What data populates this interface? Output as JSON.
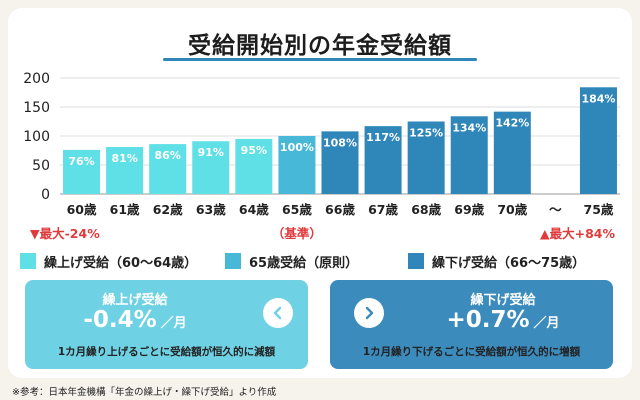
{
  "title": "受給開始別の年金受給額",
  "colors": {
    "light": "#5fdfe6",
    "mid": "#47b8d8",
    "dark": "#2f86b9",
    "red": "#e03a3a",
    "light_box": "#6fd2e4",
    "dark_box": "#3b8bbd"
  },
  "chart_data": {
    "type": "bar",
    "categories": [
      "60歳",
      "61歳",
      "62歳",
      "63歳",
      "64歳",
      "65歳",
      "66歳",
      "67歳",
      "68歳",
      "69歳",
      "70歳",
      "～",
      "75歳"
    ],
    "values": [
      76,
      81,
      86,
      91,
      95,
      100,
      108,
      117,
      125,
      134,
      142,
      null,
      184
    ],
    "data_labels": [
      "76%",
      "81%",
      "86%",
      "91%",
      "95%",
      "100%",
      "108%",
      "117%",
      "125%",
      "134%",
      "142%",
      "",
      "184%"
    ],
    "groups": [
      "light",
      "light",
      "light",
      "light",
      "light",
      "mid",
      "dark",
      "dark",
      "dark",
      "dark",
      "dark",
      "none",
      "dark"
    ],
    "ylim": [
      0,
      200
    ],
    "yticks": [
      0,
      50,
      100,
      150,
      200
    ],
    "grid": true,
    "annotations": [
      {
        "text": "▼最大-24%",
        "under": "60歳",
        "color": "red"
      },
      {
        "text": "（基準）",
        "under": "65歳",
        "color": "red"
      },
      {
        "text": "▲最大+84%",
        "under": "75歳",
        "color": "red"
      }
    ]
  },
  "legend": [
    {
      "label": "繰上げ受給（60〜64歳）",
      "color": "light"
    },
    {
      "label": "65歳受給（原則）",
      "color": "mid"
    },
    {
      "label": "繰下げ受給（66〜75歳）",
      "color": "dark"
    }
  ],
  "boxes": {
    "early": {
      "title": "繰上げ受給",
      "value": "-0.4%",
      "unit": "／月",
      "note": "1カ月繰り上げるごとに受給額が恒久的に減額",
      "icon": "chevron-left-icon"
    },
    "late": {
      "title": "繰下げ受給",
      "value": "+0.7%",
      "unit": "／月",
      "note": "1カ月繰り下げるごとに受給額が恒久的に増額",
      "icon": "chevron-right-icon"
    }
  },
  "source": "※参考：日本年金機構「年金の繰上げ・繰下げ受給」より作成"
}
